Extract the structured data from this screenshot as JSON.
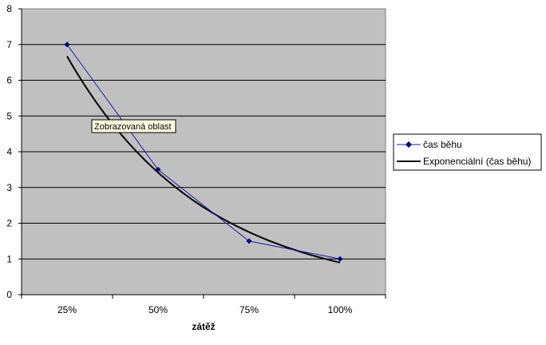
{
  "chart_data": {
    "type": "line",
    "categories": [
      "25%",
      "50%",
      "75%",
      "100%"
    ],
    "series": [
      {
        "name": "čas běhu",
        "values": [
          7,
          3.5,
          1.5,
          1
        ],
        "color": "#1a1ab4",
        "marker": "diamond"
      },
      {
        "name": "Exponenciální (čas běhu)",
        "values": [
          6.7,
          3.4,
          1.75,
          0.9
        ],
        "color": "#000000",
        "trendline": "exponential"
      }
    ],
    "title": "",
    "xlabel": "zátěž",
    "ylabel": "",
    "ylim": [
      0,
      8
    ],
    "yticks": [
      0,
      1,
      2,
      3,
      4,
      5,
      6,
      7,
      8
    ],
    "grid": true,
    "plot_background": "#c0c0c0",
    "legend_position": "right",
    "tooltip": "Zobrazovaná oblast"
  }
}
